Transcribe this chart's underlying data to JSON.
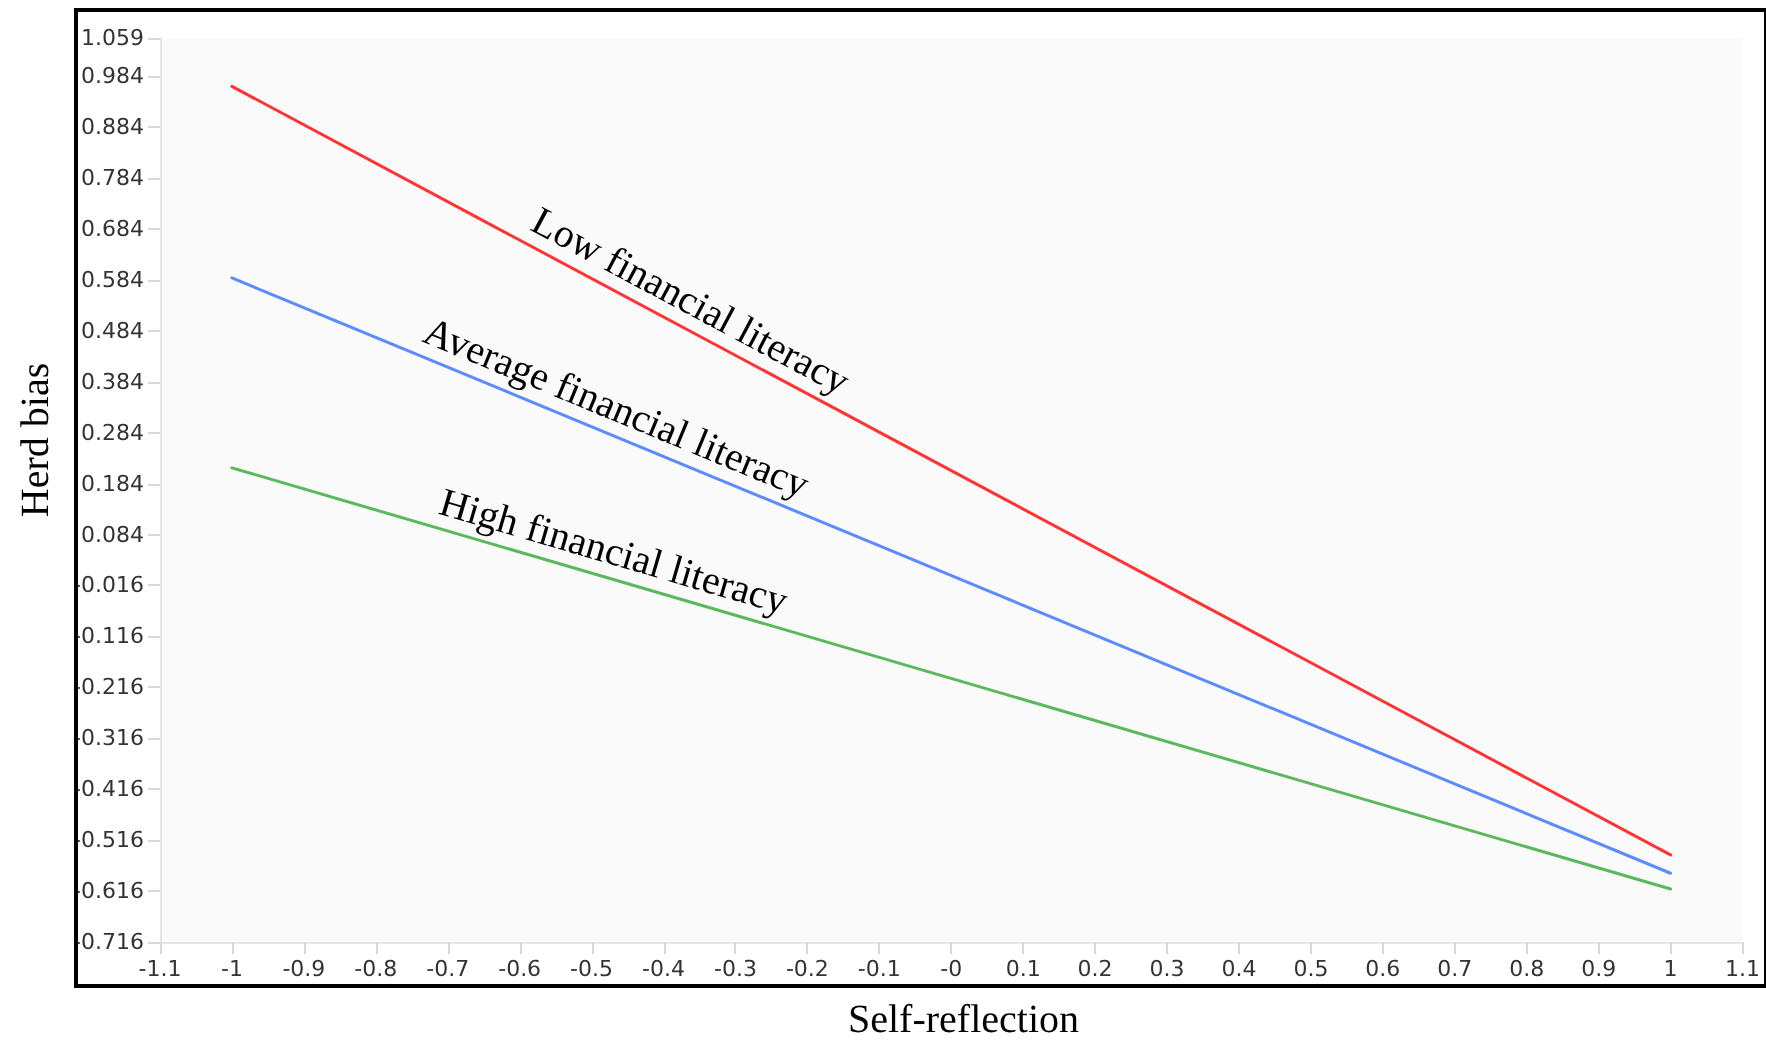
{
  "chart_data": {
    "type": "line",
    "xlabel": "Self-reflection",
    "ylabel": "Herd bias",
    "x": [
      -1,
      1
    ],
    "series": [
      {
        "name": "Low financial literacy",
        "color": "#ff3333",
        "values": [
          0.964,
          -0.545
        ]
      },
      {
        "name": "Average financial literacy",
        "color": "#5b8cff",
        "values": [
          0.588,
          -0.581
        ]
      },
      {
        "name": "High financial literacy",
        "color": "#5cb85c",
        "values": [
          0.215,
          -0.612
        ]
      }
    ],
    "xlim": [
      -1.1,
      1.1
    ],
    "xticks": [
      -1.1,
      -1,
      -0.9,
      -0.8,
      -0.7,
      -0.6,
      -0.5,
      -0.4,
      -0.3,
      -0.2,
      -0.1,
      {
        "value": 0,
        "label": "-0"
      },
      0.1,
      0.2,
      0.3,
      0.4,
      0.5,
      0.6,
      0.7,
      0.8,
      0.9,
      1,
      1.1
    ],
    "ylim": [
      -0.716,
      1.059
    ],
    "yticks": [
      -0.716,
      -0.616,
      -0.516,
      -0.416,
      -0.316,
      -0.216,
      -0.116,
      -0.016,
      0.084,
      0.184,
      0.284,
      0.384,
      0.484,
      0.584,
      0.684,
      0.784,
      0.884,
      0.984,
      1.059
    ],
    "grid": false,
    "legend": false,
    "marker": "none",
    "line_style": "solid"
  }
}
